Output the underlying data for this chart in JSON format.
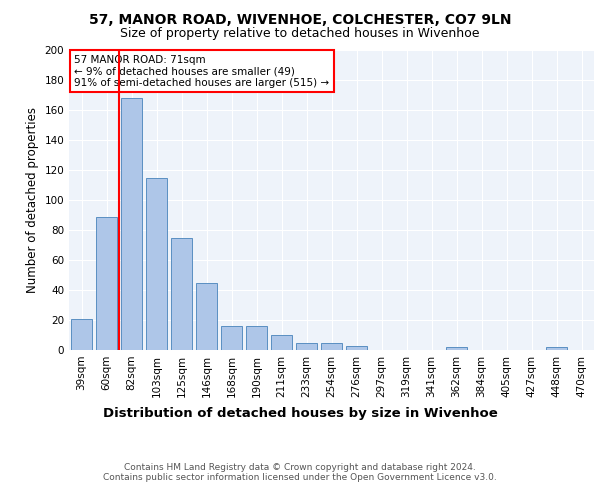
{
  "title1": "57, MANOR ROAD, WIVENHOE, COLCHESTER, CO7 9LN",
  "title2": "Size of property relative to detached houses in Wivenhoe",
  "xlabel": "Distribution of detached houses by size in Wivenhoe",
  "ylabel": "Number of detached properties",
  "categories": [
    "39sqm",
    "60sqm",
    "82sqm",
    "103sqm",
    "125sqm",
    "146sqm",
    "168sqm",
    "190sqm",
    "211sqm",
    "233sqm",
    "254sqm",
    "276sqm",
    "297sqm",
    "319sqm",
    "341sqm",
    "362sqm",
    "384sqm",
    "405sqm",
    "427sqm",
    "448sqm",
    "470sqm"
  ],
  "values": [
    21,
    89,
    168,
    115,
    75,
    45,
    16,
    16,
    10,
    5,
    5,
    3,
    0,
    0,
    0,
    2,
    0,
    0,
    0,
    2,
    0
  ],
  "bar_color": "#aec6e8",
  "bar_edge_color": "#5a8fc2",
  "annotation_text": "57 MANOR ROAD: 71sqm\n← 9% of detached houses are smaller (49)\n91% of semi-detached houses are larger (515) →",
  "annotation_box_color": "white",
  "annotation_box_edge_color": "red",
  "vline_color": "red",
  "vline_x": 1.5,
  "ylim": [
    0,
    200
  ],
  "yticks": [
    0,
    20,
    40,
    60,
    80,
    100,
    120,
    140,
    160,
    180,
    200
  ],
  "bg_color": "#eef3fa",
  "footnote": "Contains HM Land Registry data © Crown copyright and database right 2024.\nContains public sector information licensed under the Open Government Licence v3.0.",
  "title1_fontsize": 10,
  "title2_fontsize": 9,
  "xlabel_fontsize": 9.5,
  "ylabel_fontsize": 8.5,
  "tick_fontsize": 7.5,
  "annotation_fontsize": 7.5,
  "footnote_fontsize": 6.5
}
